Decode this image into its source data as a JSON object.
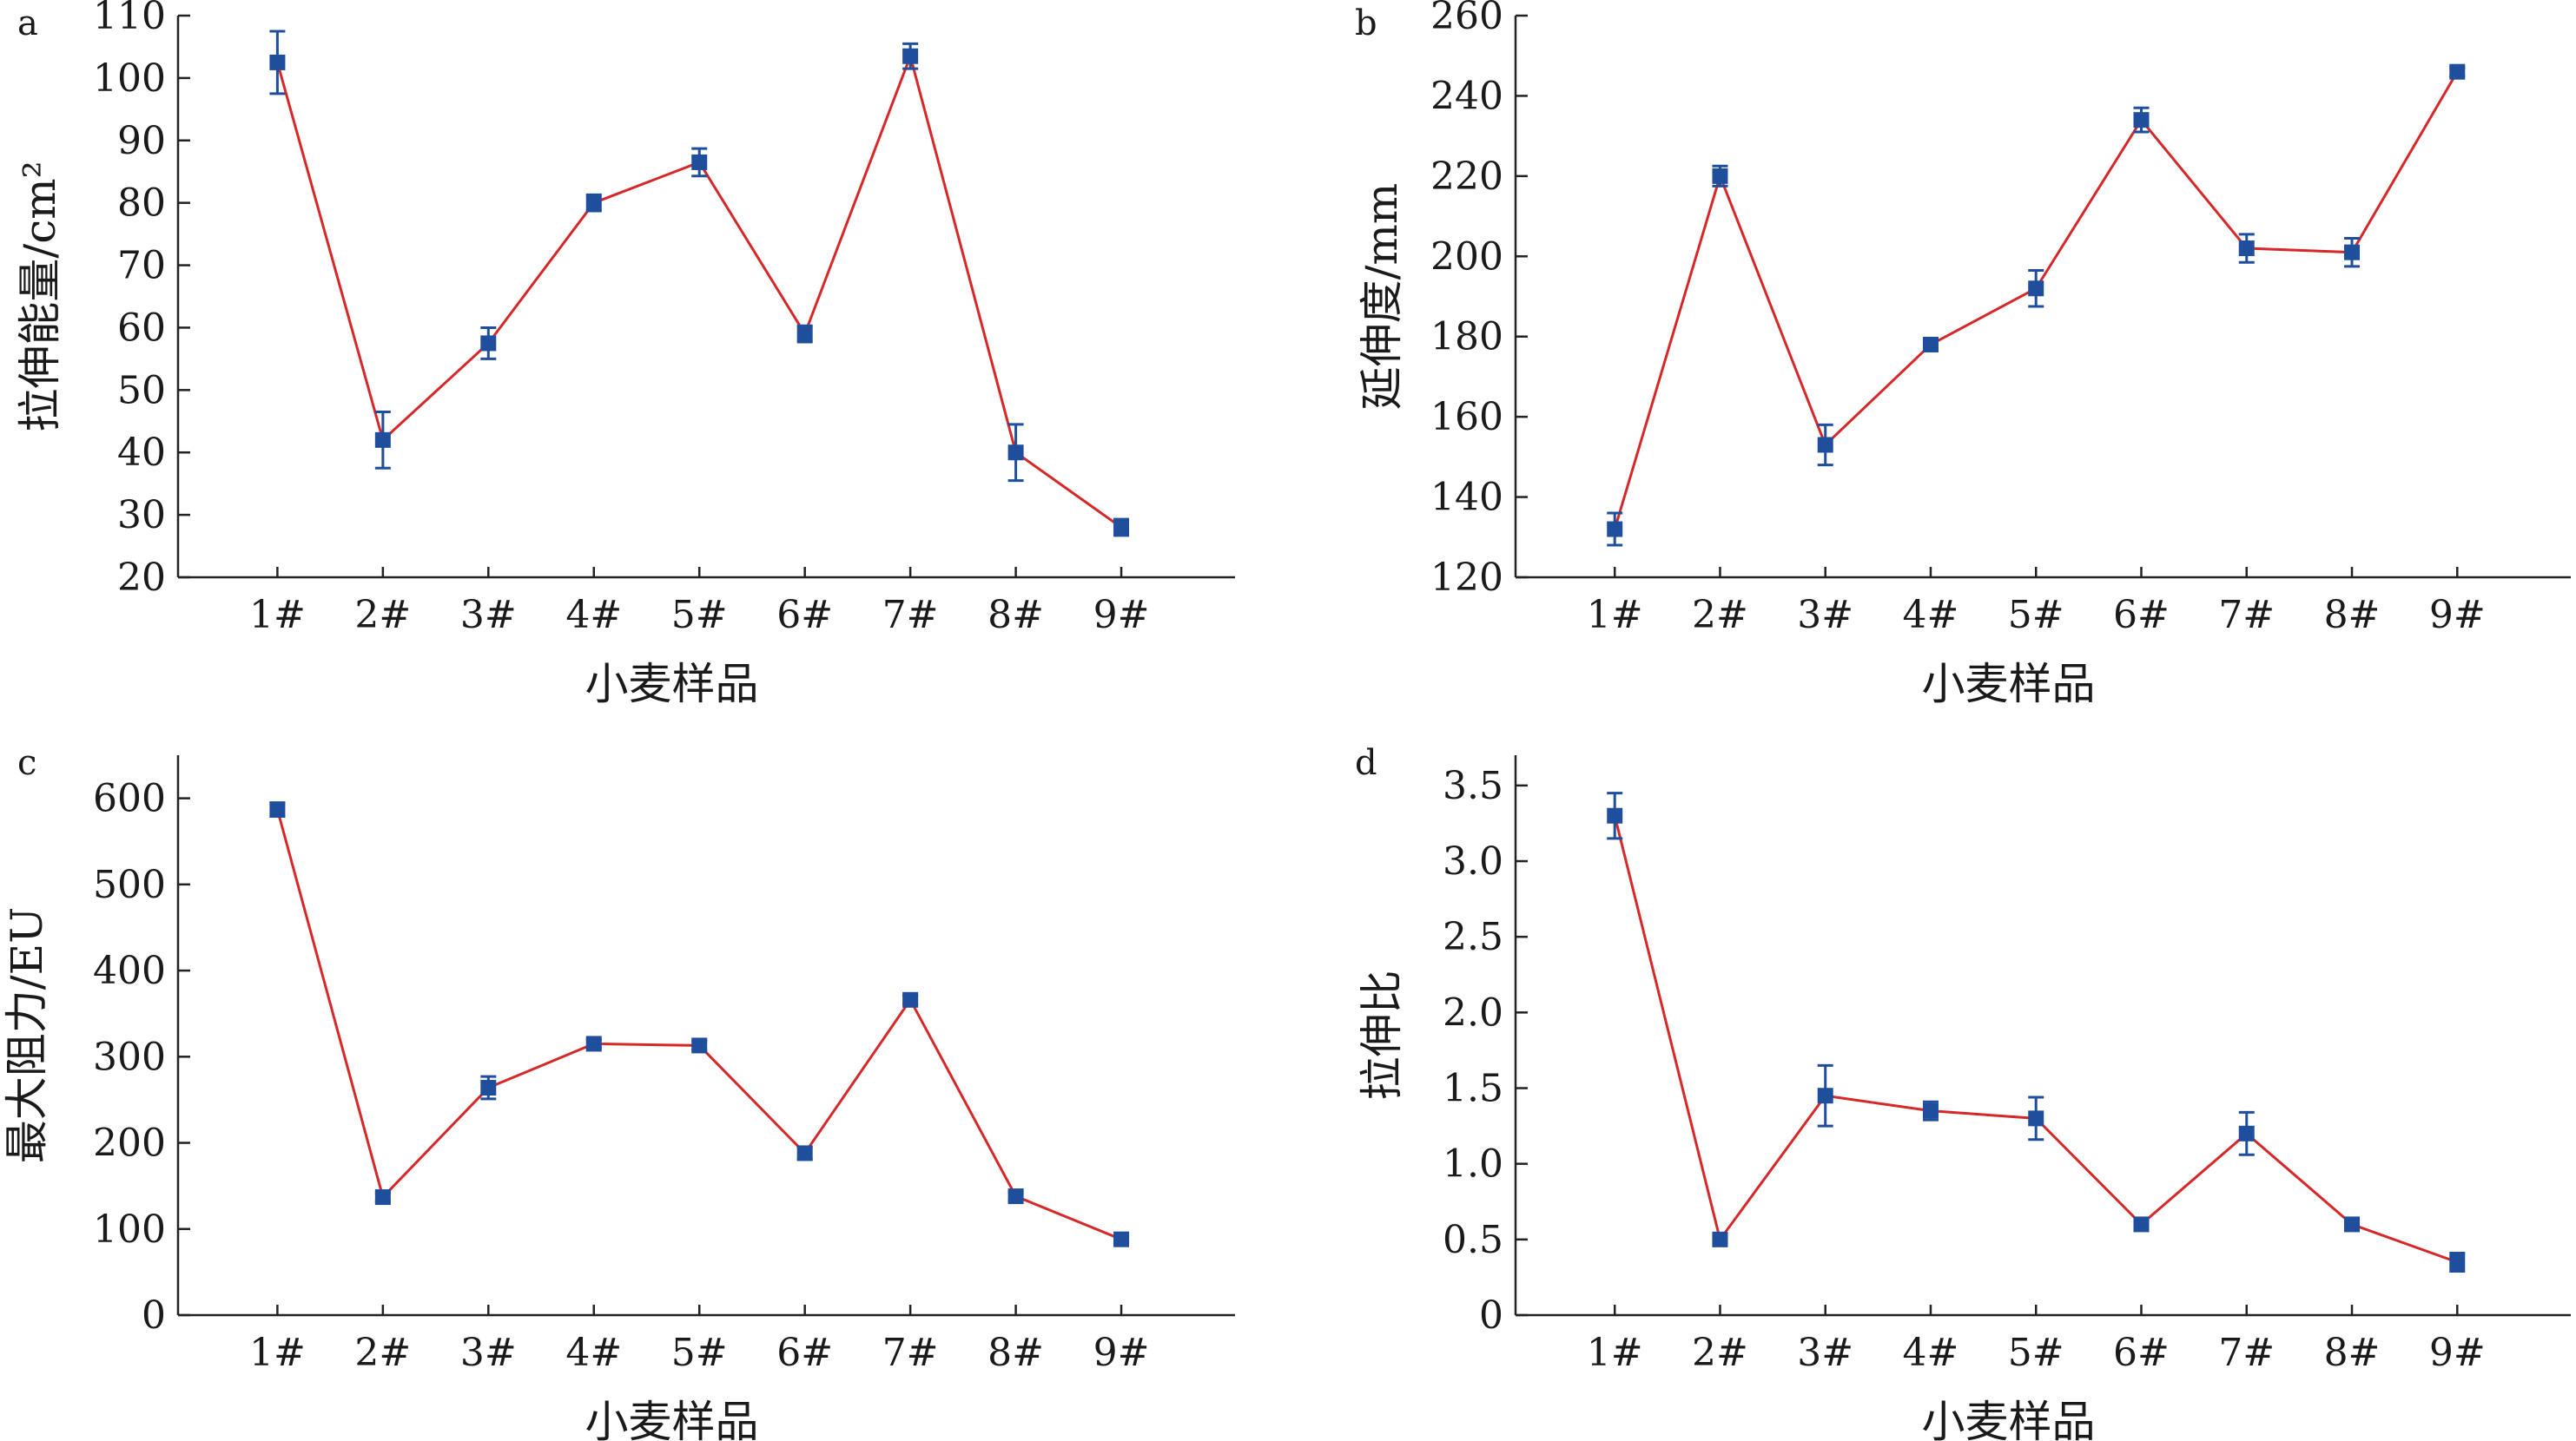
{
  "colors": {
    "line": "#d62828",
    "marker": "#1f4e9c",
    "axis": "#222222"
  },
  "chart_data": [
    {
      "panel": "a",
      "type": "line",
      "xlabel": "小麦样品",
      "ylabel": "拉伸能量/cm²",
      "categories": [
        "1#",
        "2#",
        "3#",
        "4#",
        "5#",
        "6#",
        "7#",
        "8#",
        "9#"
      ],
      "values": [
        102.5,
        42,
        57.5,
        80,
        86.5,
        59,
        103.5,
        40,
        28
      ],
      "errors": [
        5,
        4.5,
        2.5,
        1.3,
        2.2,
        1.3,
        2,
        4.5,
        1.3
      ],
      "ylim": [
        20,
        110
      ],
      "yticks": [
        20,
        30,
        40,
        50,
        60,
        70,
        80,
        90,
        100,
        110
      ],
      "ytick_labels": [
        "20",
        "30",
        "40",
        "50",
        "60",
        "70",
        "80",
        "90",
        "100",
        "110"
      ],
      "grid": false
    },
    {
      "panel": "b",
      "type": "line",
      "xlabel": "小麦样品",
      "ylabel": "延伸度/mm",
      "categories": [
        "1#",
        "2#",
        "3#",
        "4#",
        "5#",
        "6#",
        "7#",
        "8#",
        "9#"
      ],
      "values": [
        132,
        220,
        153,
        178,
        192,
        234,
        202,
        201,
        246
      ],
      "errors": [
        4,
        2.5,
        5,
        1,
        4.5,
        3,
        3.5,
        3.5,
        1
      ],
      "ylim": [
        120,
        260
      ],
      "yticks": [
        120,
        140,
        160,
        180,
        200,
        220,
        240,
        260
      ],
      "ytick_labels": [
        "120",
        "140",
        "160",
        "180",
        "200",
        "220",
        "240",
        "260"
      ],
      "grid": false
    },
    {
      "panel": "c",
      "type": "line",
      "xlabel": "小麦样品",
      "ylabel": "最大阻力/EU",
      "categories": [
        "1#",
        "2#",
        "3#",
        "4#",
        "5#",
        "6#",
        "7#",
        "8#",
        "9#"
      ],
      "values": [
        587,
        137,
        264,
        315,
        313,
        188,
        366,
        138,
        88
      ],
      "errors": [
        8,
        5,
        13,
        5,
        5,
        7,
        5,
        5,
        4
      ],
      "ylim": [
        0,
        650
      ],
      "yticks": [
        0,
        100,
        200,
        300,
        400,
        500,
        600
      ],
      "ytick_labels": [
        "0",
        "100",
        "200",
        "300",
        "400",
        "500",
        "600"
      ],
      "grid": false
    },
    {
      "panel": "d",
      "type": "line",
      "xlabel": "小麦样品",
      "ylabel": "拉伸比",
      "categories": [
        "1#",
        "2#",
        "3#",
        "4#",
        "5#",
        "6#",
        "7#",
        "8#",
        "9#"
      ],
      "values": [
        3.3,
        0.5,
        1.45,
        1.35,
        1.3,
        0.6,
        1.2,
        0.6,
        0.35
      ],
      "errors": [
        0.15,
        0.02,
        0.2,
        0.06,
        0.14,
        0.02,
        0.14,
        0.02,
        0.06
      ],
      "ylim": [
        0,
        3.7
      ],
      "yticks": [
        0,
        0.5,
        1.0,
        1.5,
        2.0,
        2.5,
        3.0,
        3.5
      ],
      "ytick_labels": [
        "0",
        "0.5",
        "1.0",
        "1.5",
        "2.0",
        "2.5",
        "3.0",
        "3.5"
      ],
      "grid": false
    }
  ]
}
